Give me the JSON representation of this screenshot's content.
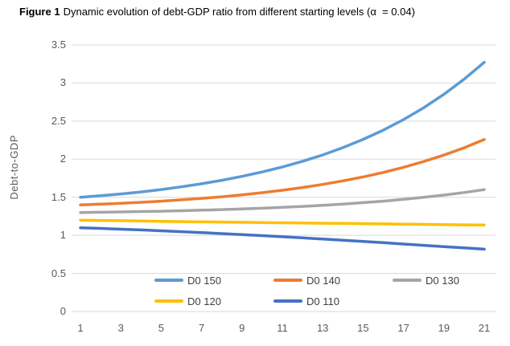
{
  "figure_label": "Figure 1",
  "colors": {
    "gridline": "#D9D9D9",
    "tick_text": "#595959",
    "legend_text": "#404040",
    "title_text": "#000000",
    "background": "#FFFFFF"
  },
  "chart_data": {
    "type": "line",
    "title": "Dynamic evolution of debt-GDP ratio from different starting levels (α  = 0.04)",
    "xlabel": "",
    "ylabel": "Debt-to-GDP",
    "ylim": [
      0,
      3.5
    ],
    "xlim": [
      1,
      21
    ],
    "grid": "horizontal-only",
    "legend_position": "bottom-inside-two-rows",
    "x": [
      1,
      2,
      3,
      4,
      5,
      6,
      7,
      8,
      9,
      10,
      11,
      12,
      13,
      14,
      15,
      16,
      17,
      18,
      19,
      20,
      21
    ],
    "x_ticks": [
      1,
      3,
      5,
      7,
      9,
      11,
      13,
      15,
      17,
      19,
      21
    ],
    "y_ticks": [
      {
        "value": 0,
        "label": "0"
      },
      {
        "value": 0.5,
        "label": "0.5"
      },
      {
        "value": 1,
        "label": "1"
      },
      {
        "value": 1.5,
        "label": "1.5"
      },
      {
        "value": 2,
        "label": "2"
      },
      {
        "value": 2.5,
        "label": "2.5"
      },
      {
        "value": 3,
        "label": "3"
      },
      {
        "value": 3.5,
        "label": "3.5"
      }
    ],
    "series": [
      {
        "name": "D0 150",
        "color": "#5B9BD5",
        "values": [
          1.5,
          1.52,
          1.543,
          1.57,
          1.601,
          1.637,
          1.677,
          1.723,
          1.774,
          1.832,
          1.898,
          1.972,
          2.056,
          2.152,
          2.26,
          2.382,
          2.52,
          2.676,
          2.852,
          3.05,
          3.272
        ]
      },
      {
        "name": "D0 140",
        "color": "#ED7D31",
        "values": [
          1.4,
          1.41,
          1.421,
          1.434,
          1.449,
          1.466,
          1.485,
          1.507,
          1.532,
          1.56,
          1.592,
          1.628,
          1.669,
          1.715,
          1.767,
          1.826,
          1.893,
          1.969,
          2.054,
          2.15,
          2.258
        ]
      },
      {
        "name": "D0 130",
        "color": "#A5A5A5",
        "values": [
          1.3,
          1.303,
          1.307,
          1.312,
          1.317,
          1.323,
          1.33,
          1.338,
          1.346,
          1.356,
          1.367,
          1.38,
          1.394,
          1.41,
          1.429,
          1.449,
          1.473,
          1.499,
          1.529,
          1.562,
          1.6
        ]
      },
      {
        "name": "D0 120",
        "color": "#FFC000",
        "values": [
          1.2,
          1.196,
          1.192,
          1.188,
          1.184,
          1.18,
          1.177,
          1.174,
          1.171,
          1.168,
          1.165,
          1.162,
          1.159,
          1.156,
          1.153,
          1.15,
          1.147,
          1.144,
          1.141,
          1.138,
          1.135
        ]
      },
      {
        "name": "D0 110",
        "color": "#4472C4",
        "values": [
          1.1,
          1.091,
          1.081,
          1.071,
          1.06,
          1.048,
          1.036,
          1.023,
          1.01,
          0.996,
          0.982,
          0.967,
          0.952,
          0.936,
          0.92,
          0.903,
          0.886,
          0.869,
          0.852,
          0.835,
          0.818
        ]
      }
    ]
  }
}
